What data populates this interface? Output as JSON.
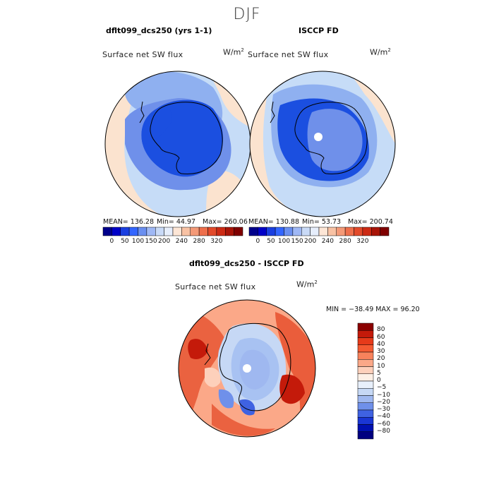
{
  "season": "DJF",
  "panels": {
    "model": {
      "title": "dflt099_dcs250 (yrs 1-1)",
      "field": "Surface net SW flux",
      "units_base": "W/m",
      "units_exp": "2",
      "mean_text": "MEAN= 136.28",
      "min_text": "Min=  44.97",
      "max_text": "Max= 260.06"
    },
    "obs": {
      "title": "ISCCP FD",
      "field": "Surface net SW flux",
      "units_base": "W/m",
      "units_exp": "2",
      "mean_text": "MEAN= 130.88",
      "min_text": "Min=  53.73",
      "max_text": "Max= 200.74"
    },
    "diff": {
      "title": "dflt099_dcs250 - ISCCP FD",
      "field": "Surface net SW flux",
      "units_base": "W/m",
      "units_exp": "2",
      "minmax_text": "MIN = −38.49 MAX =  96.20"
    }
  },
  "colorbar_abs": {
    "ticks": [
      "0",
      "50",
      "100",
      "150",
      "200",
      "240",
      "280",
      "320"
    ],
    "colors": [
      "#00008b",
      "#0000c8",
      "#1a3fe0",
      "#3366ff",
      "#6a8ff0",
      "#9fb8f5",
      "#c9daf7",
      "#e6eefc",
      "#fde6d6",
      "#f8c2a4",
      "#f49a78",
      "#ee6f4c",
      "#e24a2a",
      "#cc2a14",
      "#a81408",
      "#7f0000"
    ]
  },
  "colorbar_diff": {
    "labels": [
      "80",
      "60",
      "40",
      "30",
      "20",
      "10",
      "5",
      "0",
      "−5",
      "−10",
      "−20",
      "−30",
      "−40",
      "−60",
      "−80"
    ],
    "colors": [
      "#8b0000",
      "#c41a0a",
      "#e63a1a",
      "#f45a32",
      "#f8825c",
      "#fba888",
      "#fdd0bb",
      "#fdf0e6",
      "#e8f0fb",
      "#c6d8f5",
      "#9fb8f0",
      "#6f90ea",
      "#3f62e2",
      "#1a36d4",
      "#0010b0",
      "#000080"
    ]
  },
  "colors": {
    "antarctica_blue": "#1b4fe0",
    "ocean_light_blue": "#c6dcf7",
    "ocean_mid_blue": "#8fb0f0",
    "ocean_peach": "#fbe3cf",
    "diff_red": "#e6502e",
    "diff_light_blue": "#a8c2f2"
  }
}
